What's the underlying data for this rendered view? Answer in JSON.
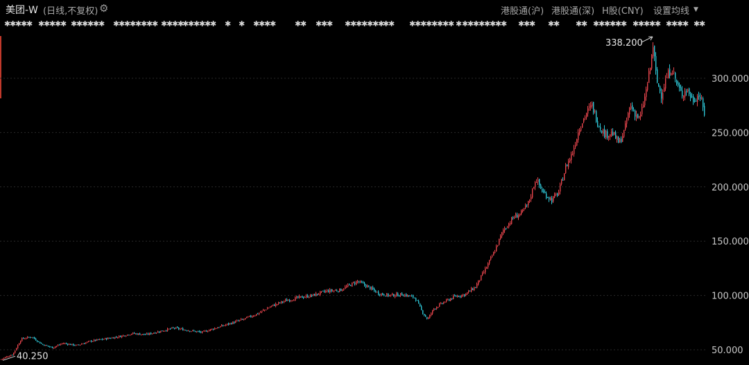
{
  "header": {
    "title": "美团-W",
    "subtitle": "(日线,不复权)",
    "menu": [
      "港股通(沪)",
      "港股通(深)",
      "H股(CNY)",
      "设置均线"
    ]
  },
  "colors": {
    "up": "#e8454d",
    "down": "#2ec6d6",
    "grid": "#2a2a2a",
    "axis_text": "#c8c8c8",
    "marker": "#d8d8d8"
  },
  "chart_data": {
    "type": "candlestick",
    "title": "",
    "xlabel": "",
    "ylabel": "",
    "ylim": [
      40,
      350
    ],
    "y_ticks": [
      50,
      100,
      150,
      200,
      250,
      300
    ],
    "y_tick_labels": [
      "50.000",
      "100.000",
      "150.000",
      "200.000",
      "250.000",
      "300.000"
    ],
    "grid": true,
    "annotations": [
      {
        "label": "338.200",
        "value": 338.2,
        "kind": "high"
      },
      {
        "label": "40.250",
        "value": 40.25,
        "kind": "low"
      }
    ],
    "close_path": [
      [
        0,
        41
      ],
      [
        18,
        46
      ],
      [
        30,
        60
      ],
      [
        45,
        62
      ],
      [
        60,
        55
      ],
      [
        75,
        52
      ],
      [
        90,
        56
      ],
      [
        110,
        54
      ],
      [
        130,
        58
      ],
      [
        150,
        60
      ],
      [
        170,
        62
      ],
      [
        190,
        65
      ],
      [
        210,
        64
      ],
      [
        230,
        67
      ],
      [
        250,
        70
      ],
      [
        270,
        68
      ],
      [
        290,
        66
      ],
      [
        310,
        70
      ],
      [
        330,
        74
      ],
      [
        350,
        78
      ],
      [
        370,
        83
      ],
      [
        390,
        90
      ],
      [
        410,
        95
      ],
      [
        430,
        98
      ],
      [
        450,
        100
      ],
      [
        470,
        104
      ],
      [
        490,
        105
      ],
      [
        505,
        110
      ],
      [
        515,
        113
      ],
      [
        530,
        108
      ],
      [
        545,
        102
      ],
      [
        560,
        100
      ],
      [
        580,
        101
      ],
      [
        598,
        98
      ],
      [
        608,
        85
      ],
      [
        616,
        78
      ],
      [
        625,
        88
      ],
      [
        640,
        94
      ],
      [
        655,
        99
      ],
      [
        670,
        101
      ],
      [
        685,
        108
      ],
      [
        700,
        125
      ],
      [
        712,
        140
      ],
      [
        725,
        160
      ],
      [
        740,
        172
      ],
      [
        752,
        176
      ],
      [
        762,
        186
      ],
      [
        772,
        208
      ],
      [
        782,
        195
      ],
      [
        795,
        188
      ],
      [
        805,
        195
      ],
      [
        815,
        218
      ],
      [
        825,
        232
      ],
      [
        835,
        255
      ],
      [
        845,
        268
      ],
      [
        853,
        275
      ],
      [
        862,
        258
      ],
      [
        872,
        248
      ],
      [
        882,
        250
      ],
      [
        892,
        240
      ],
      [
        900,
        252
      ],
      [
        908,
        275
      ],
      [
        915,
        268
      ],
      [
        922,
        262
      ],
      [
        930,
        285
      ],
      [
        937,
        310
      ],
      [
        941,
        330
      ],
      [
        946,
        298
      ],
      [
        953,
        285
      ],
      [
        960,
        300
      ],
      [
        968,
        310
      ],
      [
        975,
        295
      ],
      [
        982,
        285
      ],
      [
        990,
        290
      ],
      [
        998,
        280
      ],
      [
        1008,
        285
      ],
      [
        1016,
        265
      ]
    ],
    "top_markers": [
      [
        6,
        38
      ],
      [
        55,
        90
      ],
      [
        102,
        142
      ],
      [
        163,
        220
      ],
      [
        232,
        256
      ],
      [
        263,
        308
      ],
      [
        324,
        326
      ],
      [
        344,
        346
      ],
      [
        365,
        390
      ],
      [
        425,
        440
      ],
      [
        455,
        475
      ],
      [
        497,
        545
      ],
      [
        552,
        565
      ],
      [
        590,
        650
      ],
      [
        657,
        660
      ],
      [
        666,
        725
      ],
      [
        747,
        770
      ],
      [
        790,
        805
      ],
      [
        830,
        840
      ],
      [
        855,
        900
      ],
      [
        912,
        948
      ],
      [
        960,
        988
      ],
      [
        1000,
        1014
      ]
    ]
  }
}
